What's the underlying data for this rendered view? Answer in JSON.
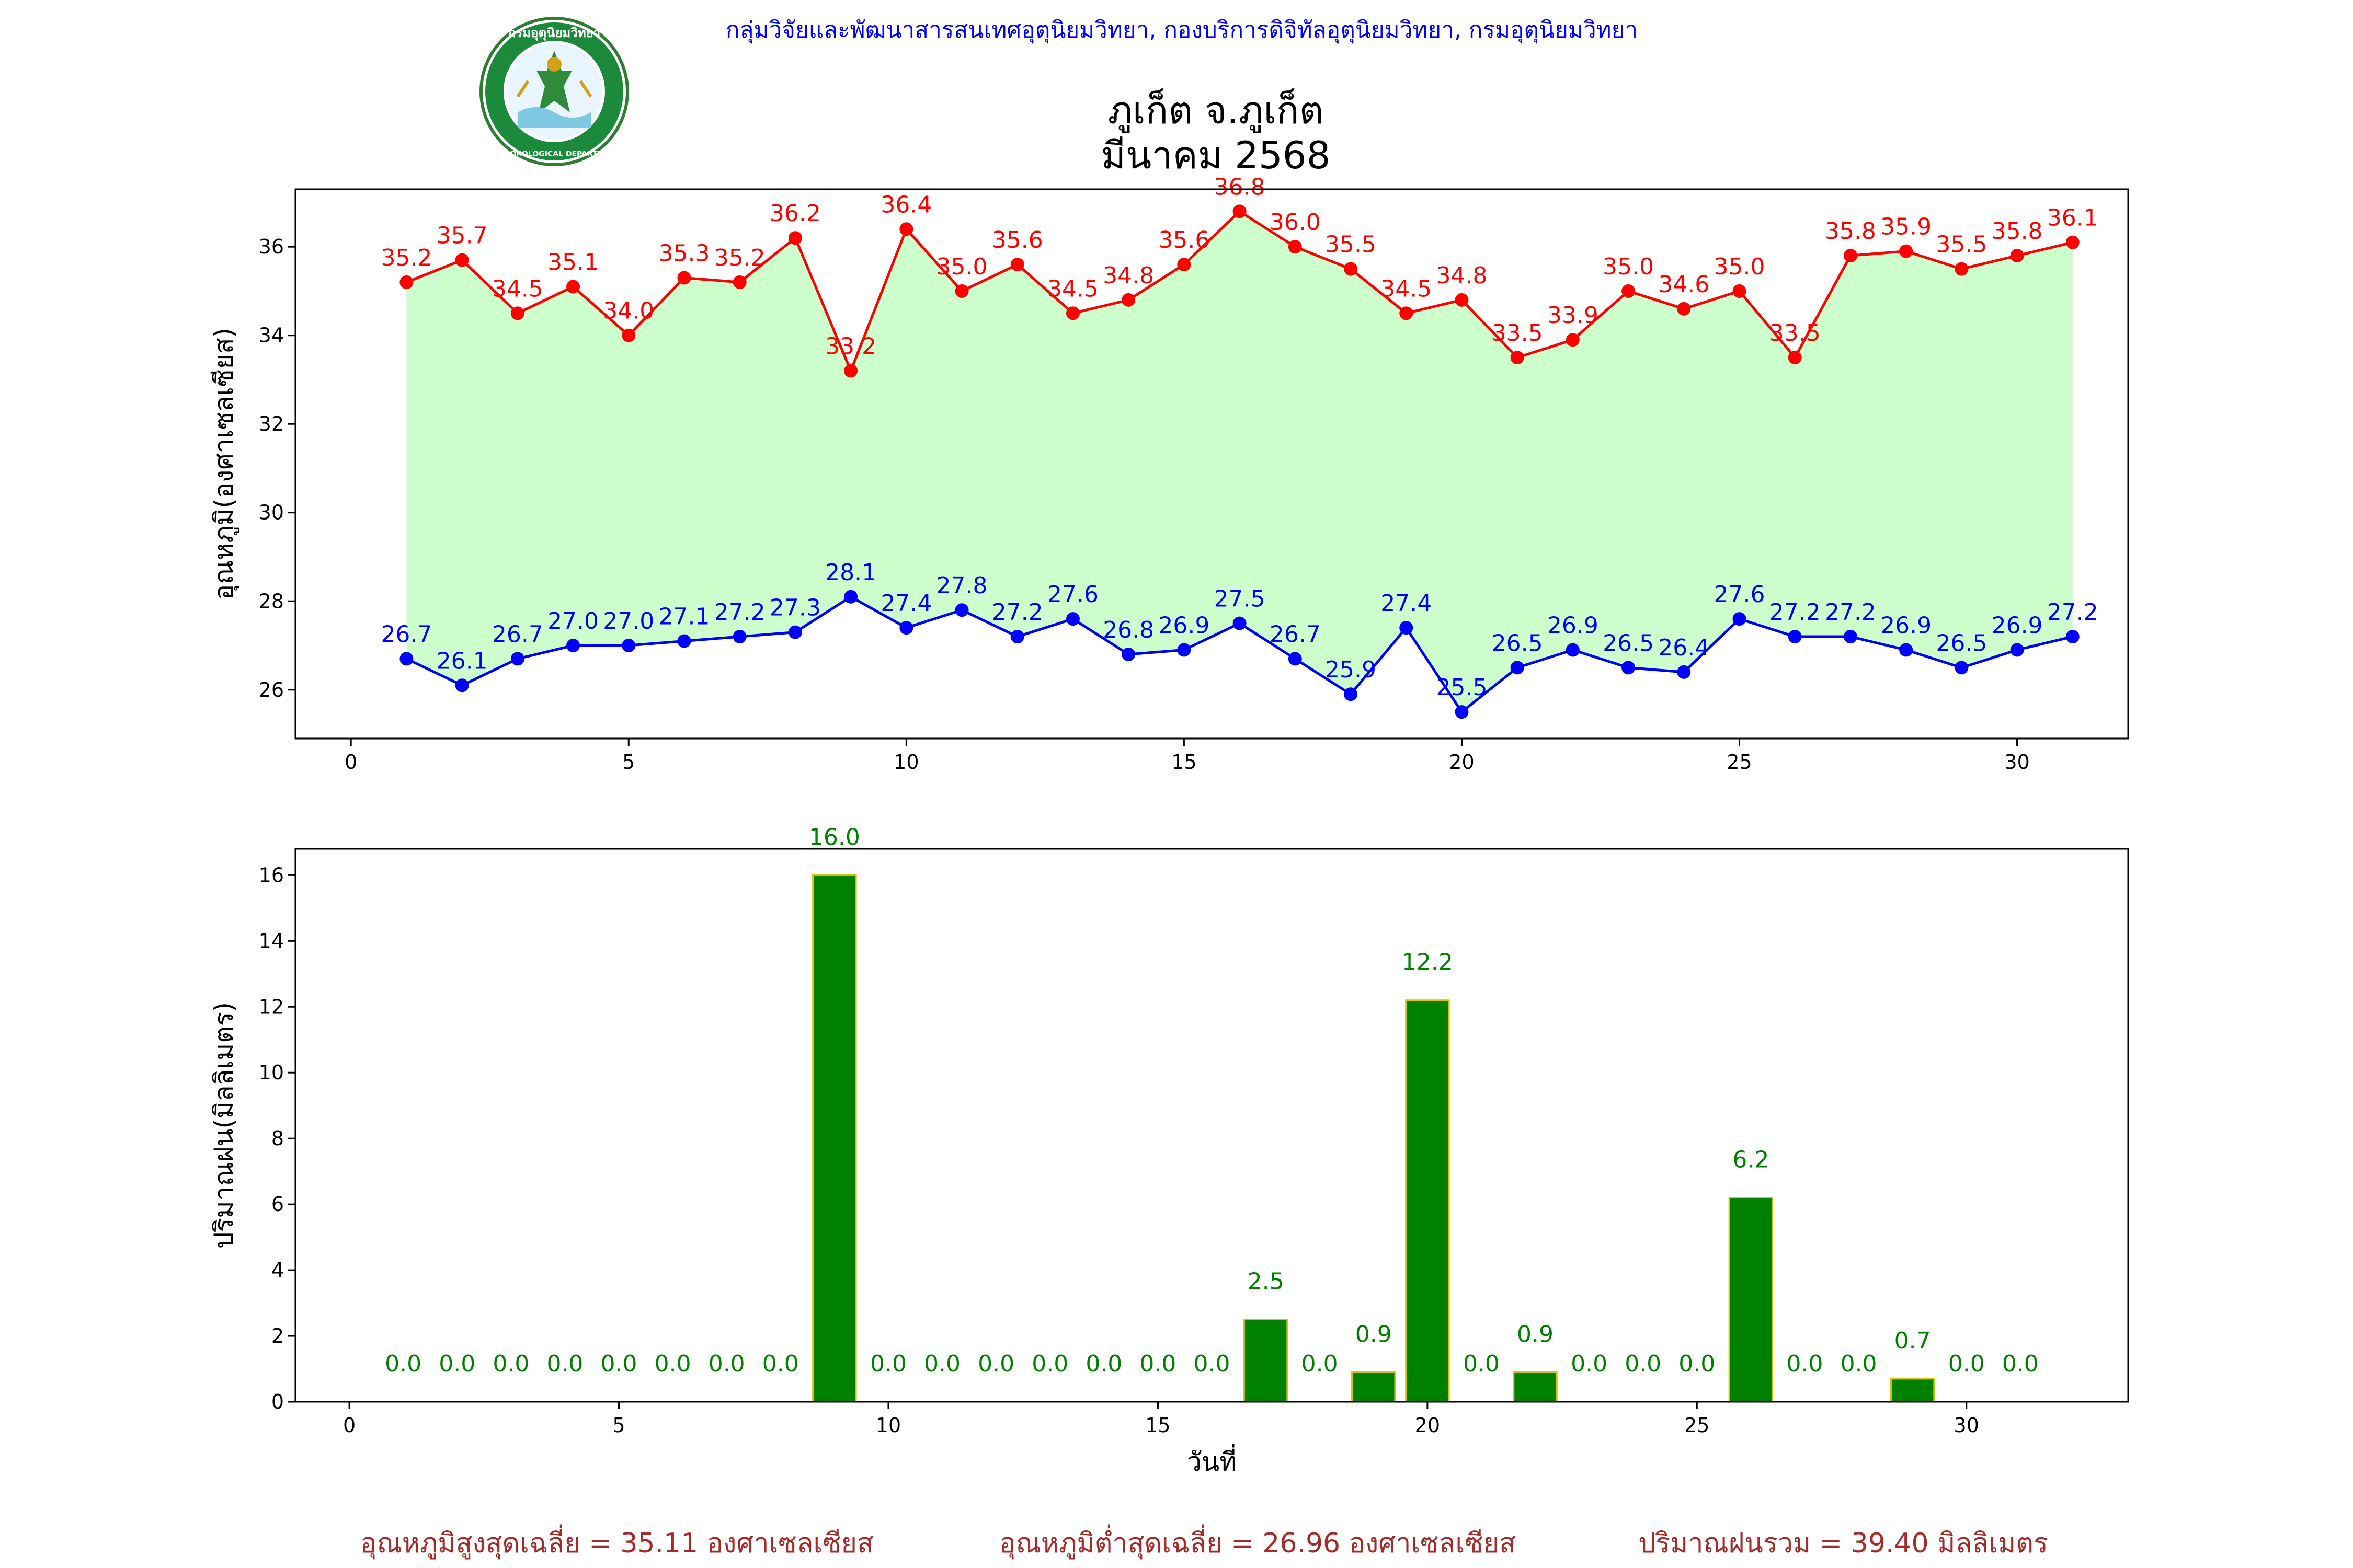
{
  "header": {
    "agency": "กลุ่มวิจัยและพัฒนาสารสนเทศอุตุนิยมวิทยา, กองบริการดิจิทัลอุตุนิยมวิทยา, กรมอุตุนิยมวิทยา",
    "title_line1": "ภูเก็ต จ.ภูเก็ต",
    "title_line2": "มีนาคม 2568",
    "logo_text_top": "กรมอุตุนิยมวิทยา",
    "logo_text_bottom": "METEOROLOGICAL DEPARTMENT"
  },
  "colors": {
    "max_line": "#ff0000",
    "min_line": "#0000ff",
    "fill": "#ccffcc",
    "bar_fill": "#008000",
    "bar_edge": "#d4c800",
    "bar_label": "#008000",
    "summary": "#a52a2a",
    "header": "#0000ff"
  },
  "chart_data": [
    {
      "type": "line",
      "ylabel": "อุณหภูมิ(องศาเซลเซียส)",
      "xlabel": "",
      "xlim": [
        -1,
        32
      ],
      "ylim": [
        24.9,
        37.3
      ],
      "xticks": [
        0,
        5,
        10,
        15,
        20,
        25,
        30
      ],
      "yticks": [
        26,
        28,
        30,
        32,
        34,
        36
      ],
      "x": [
        1,
        2,
        3,
        4,
        5,
        6,
        7,
        8,
        9,
        10,
        11,
        12,
        13,
        14,
        15,
        16,
        17,
        18,
        19,
        20,
        21,
        22,
        23,
        24,
        25,
        26,
        27,
        28,
        29,
        30,
        31
      ],
      "series": [
        {
          "values": [
            35.2,
            35.7,
            34.5,
            35.1,
            34.0,
            35.3,
            35.2,
            36.2,
            33.2,
            36.4,
            35.0,
            35.6,
            34.5,
            34.8,
            35.6,
            36.8,
            36.0,
            35.5,
            34.5,
            34.8,
            33.5,
            33.9,
            35.0,
            34.6,
            35.0,
            33.5,
            35.8,
            35.9,
            35.5,
            35.8,
            36.1
          ]
        },
        {
          "values": [
            26.7,
            26.1,
            26.7,
            27.0,
            27.0,
            27.1,
            27.2,
            27.3,
            28.1,
            27.4,
            27.8,
            27.2,
            27.6,
            26.8,
            26.9,
            27.5,
            26.7,
            25.9,
            27.4,
            25.5,
            26.5,
            26.9,
            26.5,
            26.4,
            27.6,
            27.2,
            27.2,
            26.9,
            26.5,
            26.9,
            27.2
          ]
        }
      ]
    },
    {
      "type": "bar",
      "ylabel": "ปริมาณฝน(มิลลิเมตร)",
      "xlabel": "วันที่",
      "xlim": [
        -1,
        33
      ],
      "ylim": [
        0,
        16.8
      ],
      "xticks": [
        0,
        5,
        10,
        15,
        20,
        25,
        30
      ],
      "yticks": [
        0,
        2,
        4,
        6,
        8,
        10,
        12,
        14,
        16
      ],
      "x": [
        1,
        2,
        3,
        4,
        5,
        6,
        7,
        8,
        9,
        10,
        11,
        12,
        13,
        14,
        15,
        16,
        17,
        18,
        19,
        20,
        21,
        22,
        23,
        24,
        25,
        26,
        27,
        28,
        29,
        30,
        31
      ],
      "values": [
        0.0,
        0.0,
        0.0,
        0.0,
        0.0,
        0.0,
        0.0,
        0.0,
        16.0,
        0.0,
        0.0,
        0.0,
        0.0,
        0.0,
        0.0,
        0.0,
        2.5,
        0.0,
        0.9,
        12.2,
        0.0,
        0.9,
        0.0,
        0.0,
        0.0,
        6.2,
        0.0,
        0.0,
        0.7,
        0.0,
        0.0
      ]
    }
  ],
  "summary": {
    "avg_max": "อุณหภูมิสูงสุดเฉลี่ย = 35.11 องศาเซลเซียส",
    "avg_min": "อุณหภูมิต่ำสุดเฉลี่ย = 26.96 องศาเซลเซียส",
    "total_rain": "ปริมาณฝนรวม = 39.40 มิลลิเมตร"
  }
}
